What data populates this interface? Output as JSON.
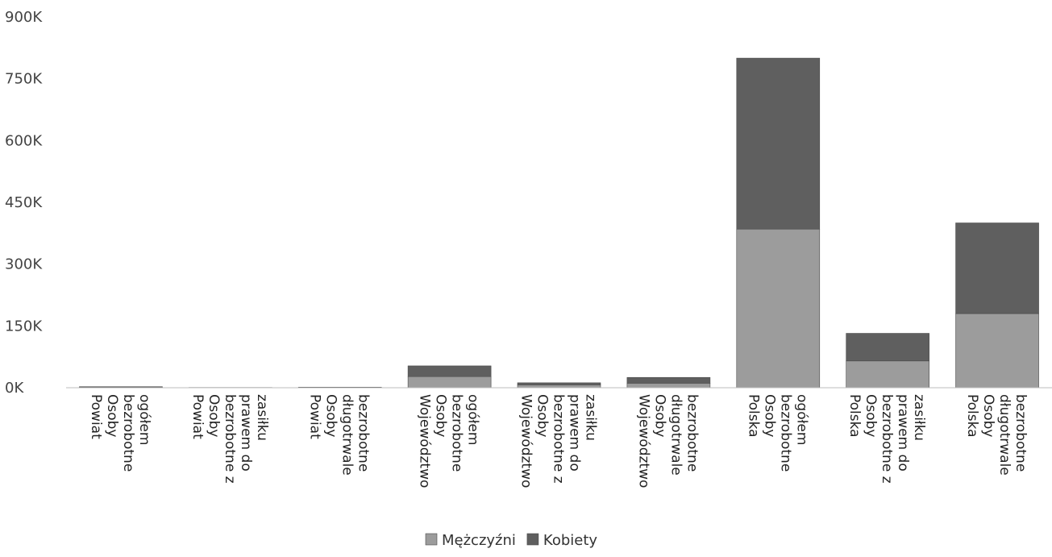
{
  "chart_data": {
    "type": "bar",
    "stacked": true,
    "title": "",
    "xlabel": "",
    "ylabel": "",
    "ylim": [
      0,
      900000
    ],
    "yticks": [
      0,
      150000,
      300000,
      450000,
      600000,
      750000,
      900000
    ],
    "ytick_labels": [
      "0K",
      "150K",
      "300K",
      "450K",
      "600K",
      "750K",
      "900K"
    ],
    "grid": false,
    "legend_position": "bottom-center",
    "categories": [
      [
        "Powiat",
        "Osoby",
        "bezrobotne",
        "ogółem"
      ],
      [
        "Powiat",
        "Osoby",
        "bezrobotne z",
        "prawem do",
        "zasiłku"
      ],
      [
        "Powiat",
        "Osoby",
        "długotrwale",
        "bezrobotne"
      ],
      [
        "Województwo",
        "Osoby",
        "bezrobotne",
        "ogółem"
      ],
      [
        "Województwo",
        "Osoby",
        "bezrobotne z",
        "prawem do",
        "zasiłku"
      ],
      [
        "Województwo",
        "Osoby",
        "długotrwale",
        "bezrobotne"
      ],
      [
        "Polska",
        "Osoby",
        "bezrobotne",
        "ogółem"
      ],
      [
        "Polska",
        "Osoby",
        "bezrobotne z",
        "prawem do",
        "zasiłku"
      ],
      [
        "Polska",
        "Osoby",
        "długotrwale",
        "bezrobotne"
      ]
    ],
    "series": [
      {
        "name": "Mężczyźni",
        "color": "#9c9c9c",
        "values": [
          1200,
          300,
          600,
          27000,
          7000,
          11000,
          385000,
          65000,
          180000
        ]
      },
      {
        "name": "Kobiety",
        "color": "#5f5f5f",
        "values": [
          1300,
          350,
          800,
          26000,
          5000,
          14000,
          415000,
          67000,
          220000
        ]
      }
    ]
  }
}
